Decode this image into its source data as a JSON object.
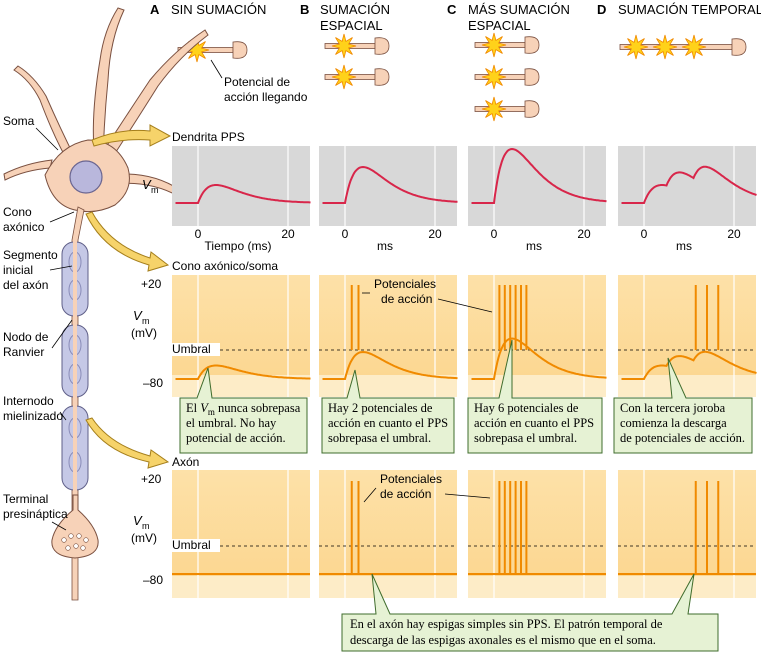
{
  "columns": [
    {
      "letter": "A",
      "title_lines": [
        "SIN SUMACIÓN"
      ]
    },
    {
      "letter": "B",
      "title_lines": [
        "SUMACIÓN",
        "ESPACIAL"
      ]
    },
    {
      "letter": "C",
      "title_lines": [
        "MÁS SUMACIÓN",
        "ESPACIAL"
      ]
    },
    {
      "letter": "D",
      "title_lines": [
        "SUMACIÓN TEMPORAL"
      ]
    }
  ],
  "stimulus_label": [
    "Potencial de",
    "acción llegando"
  ],
  "neuron_labels": {
    "soma": "Soma",
    "cono": [
      "Cono",
      "axónico"
    ],
    "segmento": [
      "Segmento",
      "inicial",
      "del axón"
    ],
    "nodo": [
      "Nodo de",
      "Ranvier"
    ],
    "internodo": [
      "Internodo",
      "mielinizado"
    ],
    "terminal": [
      "Terminal",
      "presináptica"
    ]
  },
  "sections": {
    "dendrita": "Dendrita PPS",
    "cono": "Cono axónico/soma",
    "axon": "Axón"
  },
  "axis": {
    "vm": "V",
    "vm_sub": "m",
    "mv": "(mV)",
    "plus20": "+20",
    "minus80": "–80",
    "umbral": "Umbral",
    "ticks": [
      "0",
      "20"
    ],
    "xlabel_first": "Tiempo (ms)",
    "xlabel_other": "ms"
  },
  "ap_label": [
    "Potenciales",
    "de acción"
  ],
  "callouts": {
    "a_pre": "El ",
    "a_vm": "V",
    "a_sub": "m",
    "a_post": " nunca sobrepasa",
    "a_lines": [
      "el umbral. No hay",
      "potencial de acción."
    ],
    "b_lines": [
      "Hay 2 potenciales de",
      "acción en cuanto el PPS",
      "sobrepasa el umbral."
    ],
    "c_lines": [
      "Hay 6 potenciales de",
      "acción en cuanto el PPS",
      "sobrepasa el umbral."
    ],
    "d_lines": [
      "Con la tercera joroba",
      "comienza la descarga",
      "de potenciales de acción."
    ],
    "axon_lines": [
      "En el axón hay espigas simples sin PPS. El patrón temporal de",
      "descarga de las espigas axonales es el mismo que en el soma."
    ]
  },
  "colors": {
    "epsp_red": "#d8264a",
    "spike_orange": "#f08a00",
    "panel_gray": "#d8d8d8",
    "panel_orange": "#fde0a6",
    "callout_green": "#e6f2d4",
    "neuron_pink": "#f7d2b8",
    "myelin_blue": "#c5c8e6",
    "arrow_yellow": "#f6d36a",
    "star_yellow": "#ffd21a"
  }
}
